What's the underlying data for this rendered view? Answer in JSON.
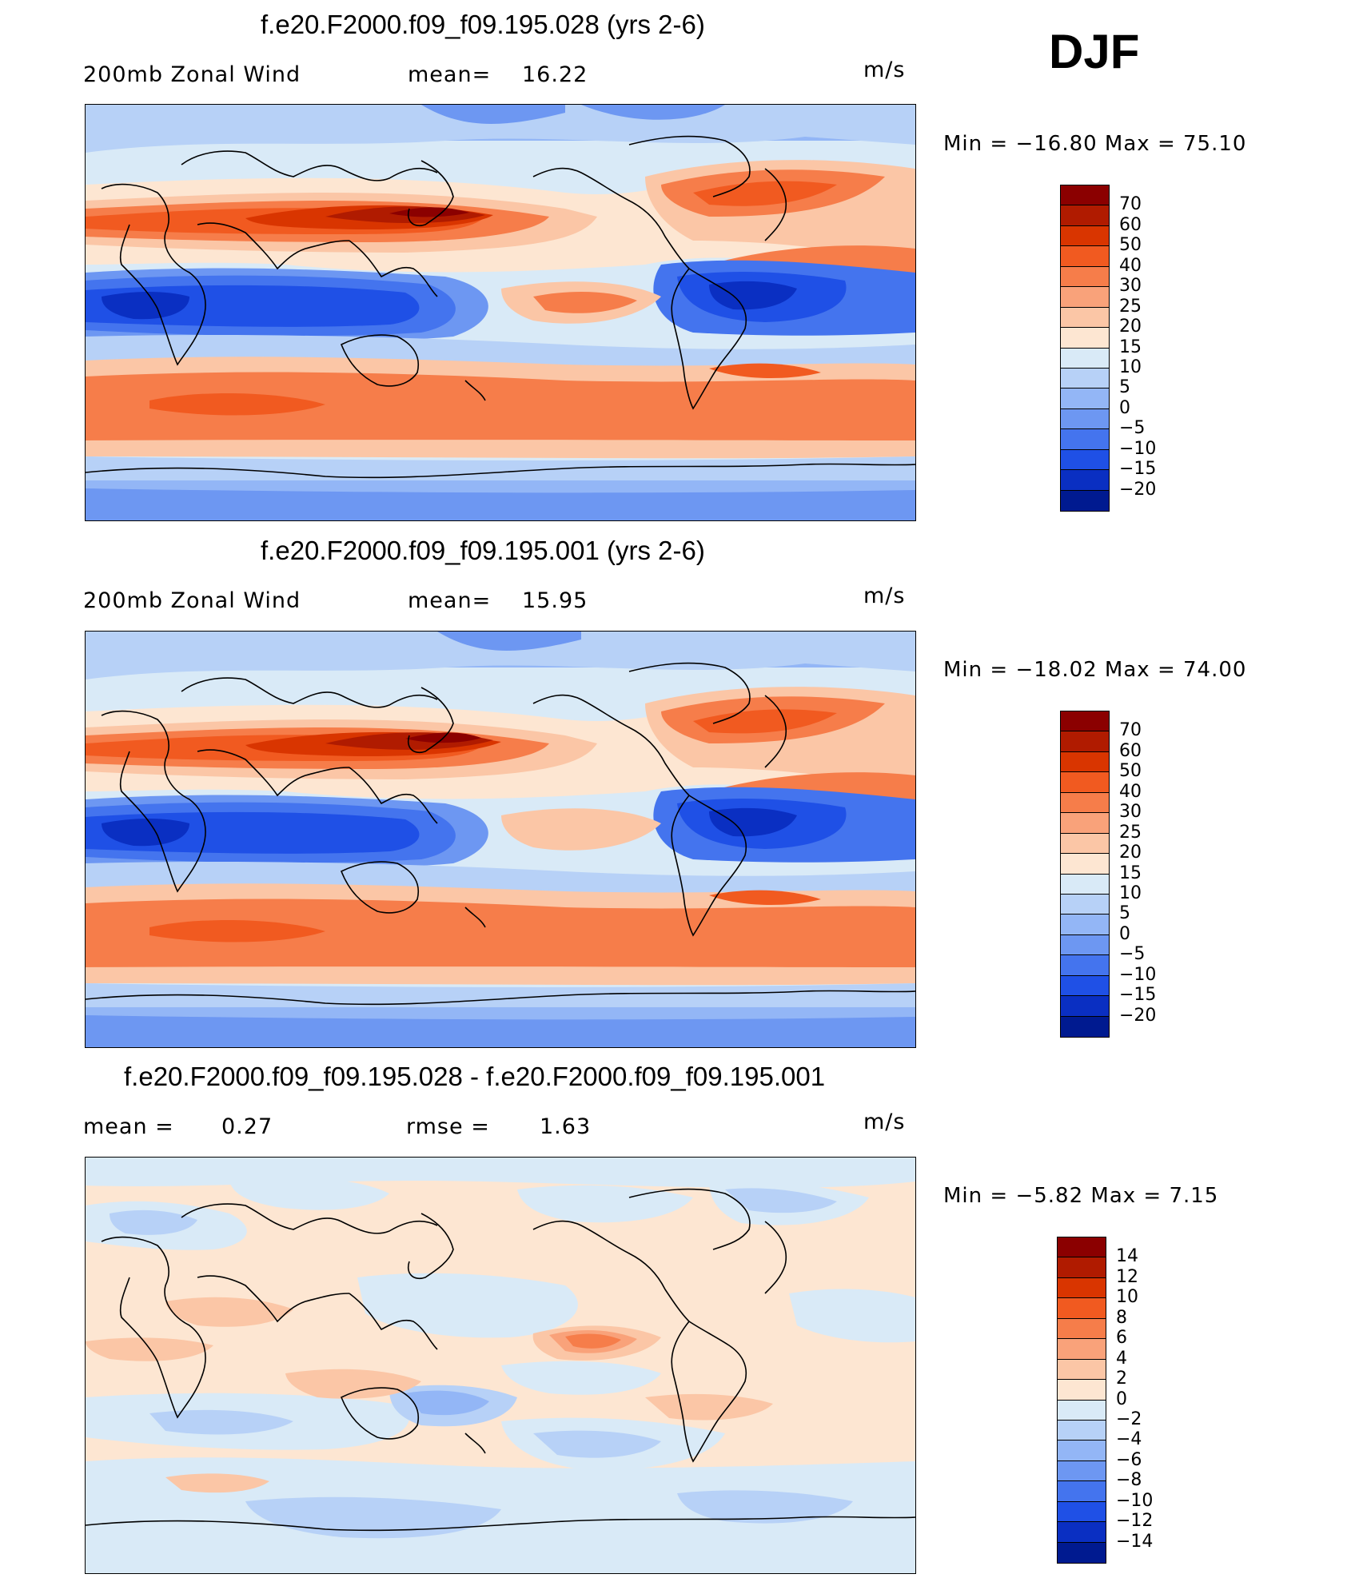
{
  "season": "DJF",
  "panels": [
    {
      "title": "f.e20.F2000.f09_f09.195.028 (yrs 2-6)",
      "left_label": "200mb  Zonal  Wind",
      "stat_label": "mean=",
      "stat_value": "16.22",
      "units": "m/s",
      "minmax": "Min  =  −16.80  Max  =    75.10",
      "colorbar": {
        "levels": [
          "70",
          "60",
          "50",
          "40",
          "30",
          "25",
          "20",
          "15",
          "10",
          "5",
          "0",
          "−5",
          "−10",
          "−15",
          "−20"
        ],
        "colors": [
          "#8b0000",
          "#b01b00",
          "#d93500",
          "#f15a20",
          "#f67d4a",
          "#f9a27a",
          "#fbc6a6",
          "#fde6d2",
          "#d9eaf7",
          "#b7d1f7",
          "#93b6f6",
          "#6d97f2",
          "#4474ee",
          "#1f50e6",
          "#0a2fc2",
          "#001a90"
        ]
      }
    },
    {
      "title": "f.e20.F2000.f09_f09.195.001 (yrs 2-6)",
      "left_label": "200mb  Zonal  Wind",
      "stat_label": "mean=",
      "stat_value": "15.95",
      "units": "m/s",
      "minmax": "Min  =  −18.02  Max  =    74.00",
      "colorbar": {
        "levels": [
          "70",
          "60",
          "50",
          "40",
          "30",
          "25",
          "20",
          "15",
          "10",
          "5",
          "0",
          "−5",
          "−10",
          "−15",
          "−20"
        ],
        "colors": [
          "#8b0000",
          "#b01b00",
          "#d93500",
          "#f15a20",
          "#f67d4a",
          "#f9a27a",
          "#fbc6a6",
          "#fde6d2",
          "#d9eaf7",
          "#b7d1f7",
          "#93b6f6",
          "#6d97f2",
          "#4474ee",
          "#1f50e6",
          "#0a2fc2",
          "#001a90"
        ]
      }
    },
    {
      "title": "f.e20.F2000.f09_f09.195.028 - f.e20.F2000.f09_f09.195.001",
      "left_label": "mean  =",
      "left_value": "0.27",
      "stat_label": "rmse  =",
      "stat_value": "1.63",
      "units": "m/s",
      "minmax": "Min  =    −5.82  Max  =      7.15",
      "colorbar": {
        "levels": [
          "14",
          "12",
          "10",
          "8",
          "6",
          "4",
          "2",
          "0",
          "−2",
          "−4",
          "−6",
          "−8",
          "−10",
          "−12",
          "−14"
        ],
        "colors": [
          "#8b0000",
          "#b01b00",
          "#d93500",
          "#f15a20",
          "#f67d4a",
          "#f9a27a",
          "#fbc6a6",
          "#fde6d2",
          "#d9eaf7",
          "#b7d1f7",
          "#93b6f6",
          "#6d97f2",
          "#4474ee",
          "#1f50e6",
          "#0a2fc2",
          "#001a90"
        ]
      }
    }
  ]
}
